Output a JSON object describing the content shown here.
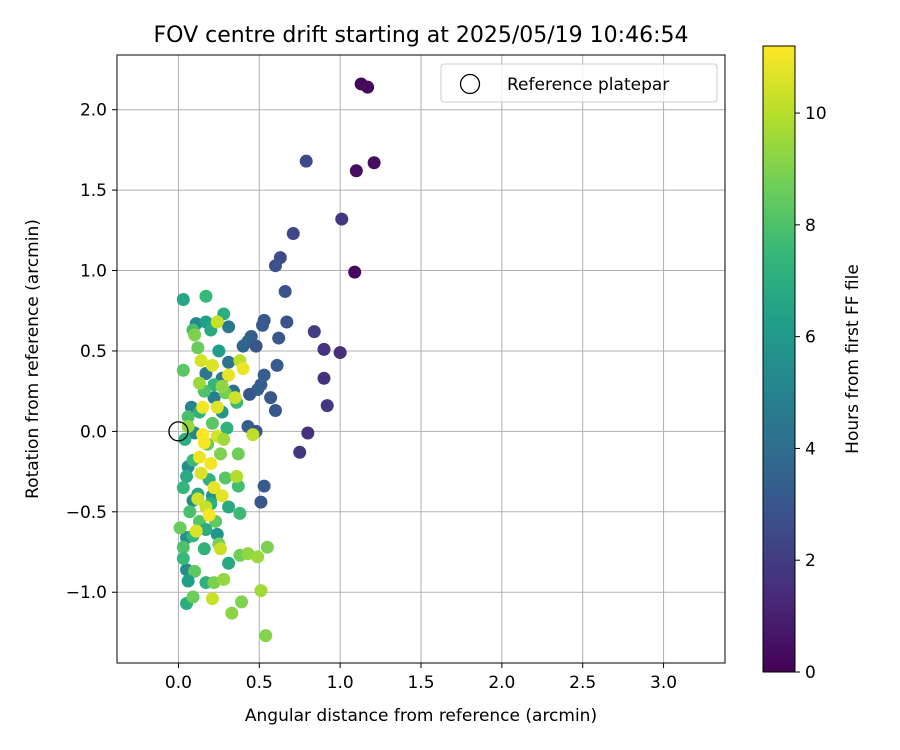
{
  "chart_data": {
    "type": "scatter",
    "title": "FOV centre drift starting at 2025/05/19 10:46:54",
    "xlabel": "Angular distance from reference (arcmin)",
    "ylabel": "Rotation from reference (arcmin)",
    "xlim": [
      -0.38,
      3.38
    ],
    "ylim": [
      -1.44,
      2.34
    ],
    "xticks": [
      0.0,
      0.5,
      1.0,
      1.5,
      2.0,
      2.5,
      3.0
    ],
    "xtick_labels": [
      "0.0",
      "0.5",
      "1.0",
      "1.5",
      "2.0",
      "2.5",
      "3.0"
    ],
    "yticks": [
      -1.0,
      -0.5,
      0.0,
      0.5,
      1.0,
      1.5,
      2.0
    ],
    "ytick_labels": [
      "−1.0",
      "−0.5",
      "0.0",
      "0.5",
      "1.0",
      "1.5",
      "2.0"
    ],
    "grid": true,
    "legend": {
      "placement": "top-right",
      "label": "Reference platepar"
    },
    "reference_point": {
      "x": 0.0,
      "y": 0.0
    },
    "colorbar": {
      "label": "Hours from first FF file",
      "range": [
        0,
        11.2
      ],
      "ticks": [
        0,
        2,
        4,
        6,
        8,
        10
      ],
      "tick_labels": [
        "0",
        "2",
        "4",
        "6",
        "8",
        "10"
      ],
      "colormap": "viridis",
      "colors": [
        "#440154",
        "#482878",
        "#3e4989",
        "#31688e",
        "#26828e",
        "#1f9e89",
        "#35b779",
        "#6ece58",
        "#b5de2b",
        "#fde725"
      ]
    },
    "points": [
      {
        "x": 1.13,
        "y": 2.16,
        "h": 0.2
      },
      {
        "x": 1.17,
        "y": 2.14,
        "h": 0.3
      },
      {
        "x": 1.21,
        "y": 1.67,
        "h": 0.4
      },
      {
        "x": 1.1,
        "y": 1.62,
        "h": 0.4
      },
      {
        "x": 1.09,
        "y": 0.99,
        "h": 0.3
      },
      {
        "x": 1.01,
        "y": 1.32,
        "h": 1.8
      },
      {
        "x": 0.79,
        "y": 1.68,
        "h": 2.5
      },
      {
        "x": 0.71,
        "y": 1.23,
        "h": 2.4
      },
      {
        "x": 0.63,
        "y": 1.08,
        "h": 2.6
      },
      {
        "x": 0.6,
        "y": 1.03,
        "h": 2.8
      },
      {
        "x": 0.66,
        "y": 0.87,
        "h": 2.9
      },
      {
        "x": 0.84,
        "y": 0.62,
        "h": 2.0
      },
      {
        "x": 0.9,
        "y": 0.51,
        "h": 1.7
      },
      {
        "x": 1.0,
        "y": 0.49,
        "h": 1.5
      },
      {
        "x": 0.67,
        "y": 0.68,
        "h": 2.9
      },
      {
        "x": 0.53,
        "y": 0.69,
        "h": 3.0
      },
      {
        "x": 0.52,
        "y": 0.66,
        "h": 3.2
      },
      {
        "x": 0.62,
        "y": 0.58,
        "h": 3.1
      },
      {
        "x": 0.45,
        "y": 0.59,
        "h": 3.3
      },
      {
        "x": 0.43,
        "y": 0.56,
        "h": 3.5
      },
      {
        "x": 0.48,
        "y": 0.53,
        "h": 3.0
      },
      {
        "x": 0.4,
        "y": 0.53,
        "h": 3.6
      },
      {
        "x": 0.61,
        "y": 0.41,
        "h": 3.2
      },
      {
        "x": 0.53,
        "y": 0.35,
        "h": 3.3
      },
      {
        "x": 0.9,
        "y": 0.33,
        "h": 1.6
      },
      {
        "x": 0.51,
        "y": 0.29,
        "h": 3.2
      },
      {
        "x": 0.49,
        "y": 0.26,
        "h": 3.4
      },
      {
        "x": 0.44,
        "y": 0.23,
        "h": 3.0
      },
      {
        "x": 0.57,
        "y": 0.21,
        "h": 3.1
      },
      {
        "x": 0.92,
        "y": 0.16,
        "h": 1.9
      },
      {
        "x": 0.6,
        "y": 0.13,
        "h": 3.0
      },
      {
        "x": 0.43,
        "y": 0.03,
        "h": 3.3
      },
      {
        "x": 0.48,
        "y": 0.0,
        "h": 3.0
      },
      {
        "x": 0.8,
        "y": -0.01,
        "h": 1.6
      },
      {
        "x": 0.75,
        "y": -0.13,
        "h": 1.8
      },
      {
        "x": 0.53,
        "y": -0.34,
        "h": 3.2
      },
      {
        "x": 0.51,
        "y": -0.44,
        "h": 3.0
      },
      {
        "x": 0.34,
        "y": 0.25,
        "h": 4.0
      },
      {
        "x": 0.31,
        "y": 0.43,
        "h": 4.3
      },
      {
        "x": 0.31,
        "y": 0.65,
        "h": 4.5
      },
      {
        "x": 0.17,
        "y": 0.36,
        "h": 4.4
      },
      {
        "x": 0.27,
        "y": 0.33,
        "h": 4.6
      },
      {
        "x": 0.22,
        "y": 0.21,
        "h": 4.8
      },
      {
        "x": 0.08,
        "y": 0.15,
        "h": 5.0
      },
      {
        "x": 0.1,
        "y": -0.01,
        "h": 5.2
      },
      {
        "x": 0.06,
        "y": -0.22,
        "h": 5.5
      },
      {
        "x": 0.09,
        "y": -0.43,
        "h": 5.4
      },
      {
        "x": 0.05,
        "y": -0.66,
        "h": 5.6
      },
      {
        "x": 0.05,
        "y": -0.86,
        "h": 5.4
      },
      {
        "x": 0.24,
        "y": -0.64,
        "h": 5.8
      },
      {
        "x": 0.21,
        "y": -0.4,
        "h": 5.7
      },
      {
        "x": 0.27,
        "y": 0.12,
        "h": 5.9
      },
      {
        "x": 0.11,
        "y": 0.67,
        "h": 5.2
      },
      {
        "x": 0.17,
        "y": 0.68,
        "h": 6.3
      },
      {
        "x": 0.25,
        "y": 0.5,
        "h": 6.2
      },
      {
        "x": 0.03,
        "y": 0.82,
        "h": 6.6
      },
      {
        "x": 0.17,
        "y": 0.84,
        "h": 7.5
      },
      {
        "x": 0.28,
        "y": 0.73,
        "h": 7.0
      },
      {
        "x": 0.2,
        "y": 0.63,
        "h": 6.8
      },
      {
        "x": 0.09,
        "y": 0.63,
        "h": 7.8
      },
      {
        "x": 0.12,
        "y": 0.52,
        "h": 8.6
      },
      {
        "x": 0.03,
        "y": 0.38,
        "h": 8.3
      },
      {
        "x": 0.22,
        "y": 0.29,
        "h": 7.4
      },
      {
        "x": 0.16,
        "y": 0.25,
        "h": 8.0
      },
      {
        "x": 0.29,
        "y": 0.24,
        "h": 8.8
      },
      {
        "x": 0.36,
        "y": 0.18,
        "h": 7.6
      },
      {
        "x": 0.13,
        "y": 0.12,
        "h": 7.1
      },
      {
        "x": 0.06,
        "y": 0.09,
        "h": 7.9
      },
      {
        "x": 0.21,
        "y": 0.05,
        "h": 8.3
      },
      {
        "x": 0.3,
        "y": 0.02,
        "h": 7.2
      },
      {
        "x": 0.04,
        "y": -0.05,
        "h": 7.0
      },
      {
        "x": 0.18,
        "y": -0.08,
        "h": 8.5
      },
      {
        "x": 0.26,
        "y": -0.14,
        "h": 9.0
      },
      {
        "x": 0.37,
        "y": -0.14,
        "h": 8.7
      },
      {
        "x": 0.09,
        "y": -0.18,
        "h": 7.6
      },
      {
        "x": 0.05,
        "y": -0.28,
        "h": 6.8
      },
      {
        "x": 0.19,
        "y": -0.3,
        "h": 7.1
      },
      {
        "x": 0.29,
        "y": -0.29,
        "h": 8.2
      },
      {
        "x": 0.37,
        "y": -0.34,
        "h": 7.8
      },
      {
        "x": 0.03,
        "y": -0.35,
        "h": 7.4
      },
      {
        "x": 0.12,
        "y": -0.39,
        "h": 6.5
      },
      {
        "x": 0.2,
        "y": -0.45,
        "h": 7.0
      },
      {
        "x": 0.31,
        "y": -0.47,
        "h": 6.8
      },
      {
        "x": 0.38,
        "y": -0.51,
        "h": 7.6
      },
      {
        "x": 0.07,
        "y": -0.5,
        "h": 7.9
      },
      {
        "x": 0.13,
        "y": -0.56,
        "h": 8.2
      },
      {
        "x": 0.01,
        "y": -0.6,
        "h": 8.6
      },
      {
        "x": 0.23,
        "y": -0.56,
        "h": 8.4
      },
      {
        "x": 0.17,
        "y": -0.61,
        "h": 6.9
      },
      {
        "x": 0.09,
        "y": -0.65,
        "h": 7.4
      },
      {
        "x": 0.03,
        "y": -0.72,
        "h": 8.0
      },
      {
        "x": 0.16,
        "y": -0.73,
        "h": 7.2
      },
      {
        "x": 0.25,
        "y": -0.7,
        "h": 8.8
      },
      {
        "x": 0.31,
        "y": -0.82,
        "h": 6.7
      },
      {
        "x": 0.03,
        "y": -0.79,
        "h": 7.5
      },
      {
        "x": 0.1,
        "y": -0.87,
        "h": 8.4
      },
      {
        "x": 0.06,
        "y": -0.93,
        "h": 6.3
      },
      {
        "x": 0.17,
        "y": -0.94,
        "h": 7.1
      },
      {
        "x": 0.22,
        "y": -0.94,
        "h": 8.9
      },
      {
        "x": 0.28,
        "y": -0.92,
        "h": 9.4
      },
      {
        "x": 0.05,
        "y": -1.07,
        "h": 7.0
      },
      {
        "x": 0.09,
        "y": -1.03,
        "h": 8.6
      },
      {
        "x": 0.38,
        "y": -0.77,
        "h": 8.7
      },
      {
        "x": 0.43,
        "y": -0.76,
        "h": 9.3
      },
      {
        "x": 0.49,
        "y": -0.78,
        "h": 9.5
      },
      {
        "x": 0.55,
        "y": -0.72,
        "h": 8.9
      },
      {
        "x": 0.39,
        "y": -1.06,
        "h": 9.0
      },
      {
        "x": 0.51,
        "y": -0.99,
        "h": 9.6
      },
      {
        "x": 0.33,
        "y": -1.13,
        "h": 9.2
      },
      {
        "x": 0.54,
        "y": -1.27,
        "h": 9.1
      },
      {
        "x": 0.21,
        "y": -1.04,
        "h": 10.3
      },
      {
        "x": 0.14,
        "y": 0.44,
        "h": 10.5
      },
      {
        "x": 0.21,
        "y": 0.41,
        "h": 10.6
      },
      {
        "x": 0.24,
        "y": 0.68,
        "h": 10.3
      },
      {
        "x": 0.31,
        "y": 0.35,
        "h": 10.8
      },
      {
        "x": 0.38,
        "y": 0.44,
        "h": 10.1
      },
      {
        "x": 0.4,
        "y": 0.39,
        "h": 10.9
      },
      {
        "x": 0.35,
        "y": 0.21,
        "h": 10.4
      },
      {
        "x": 0.15,
        "y": 0.15,
        "h": 11.0
      },
      {
        "x": 0.24,
        "y": 0.15,
        "h": 10.7
      },
      {
        "x": 0.15,
        "y": -0.02,
        "h": 11.2
      },
      {
        "x": 0.16,
        "y": -0.07,
        "h": 11.1
      },
      {
        "x": 0.24,
        "y": -0.03,
        "h": 10.5
      },
      {
        "x": 0.13,
        "y": -0.16,
        "h": 10.9
      },
      {
        "x": 0.2,
        "y": -0.2,
        "h": 11.0
      },
      {
        "x": 0.14,
        "y": -0.26,
        "h": 10.6
      },
      {
        "x": 0.22,
        "y": -0.35,
        "h": 10.8
      },
      {
        "x": 0.12,
        "y": -0.42,
        "h": 10.4
      },
      {
        "x": 0.17,
        "y": -0.47,
        "h": 10.2
      },
      {
        "x": 0.27,
        "y": -0.4,
        "h": 10.7
      },
      {
        "x": 0.19,
        "y": -0.52,
        "h": 11.1
      },
      {
        "x": 0.11,
        "y": -0.62,
        "h": 10.6
      },
      {
        "x": 0.26,
        "y": -0.73,
        "h": 10.3
      },
      {
        "x": 0.46,
        "y": -0.02,
        "h": 10.1
      },
      {
        "x": 0.28,
        "y": -0.05,
        "h": 9.6
      },
      {
        "x": 0.36,
        "y": -0.28,
        "h": 9.9
      },
      {
        "x": 0.06,
        "y": 0.03,
        "h": 9.4
      },
      {
        "x": 0.13,
        "y": 0.3,
        "h": 9.5
      },
      {
        "x": 0.27,
        "y": 0.28,
        "h": 9.3
      },
      {
        "x": 0.1,
        "y": 0.6,
        "h": 9.0
      }
    ]
  }
}
